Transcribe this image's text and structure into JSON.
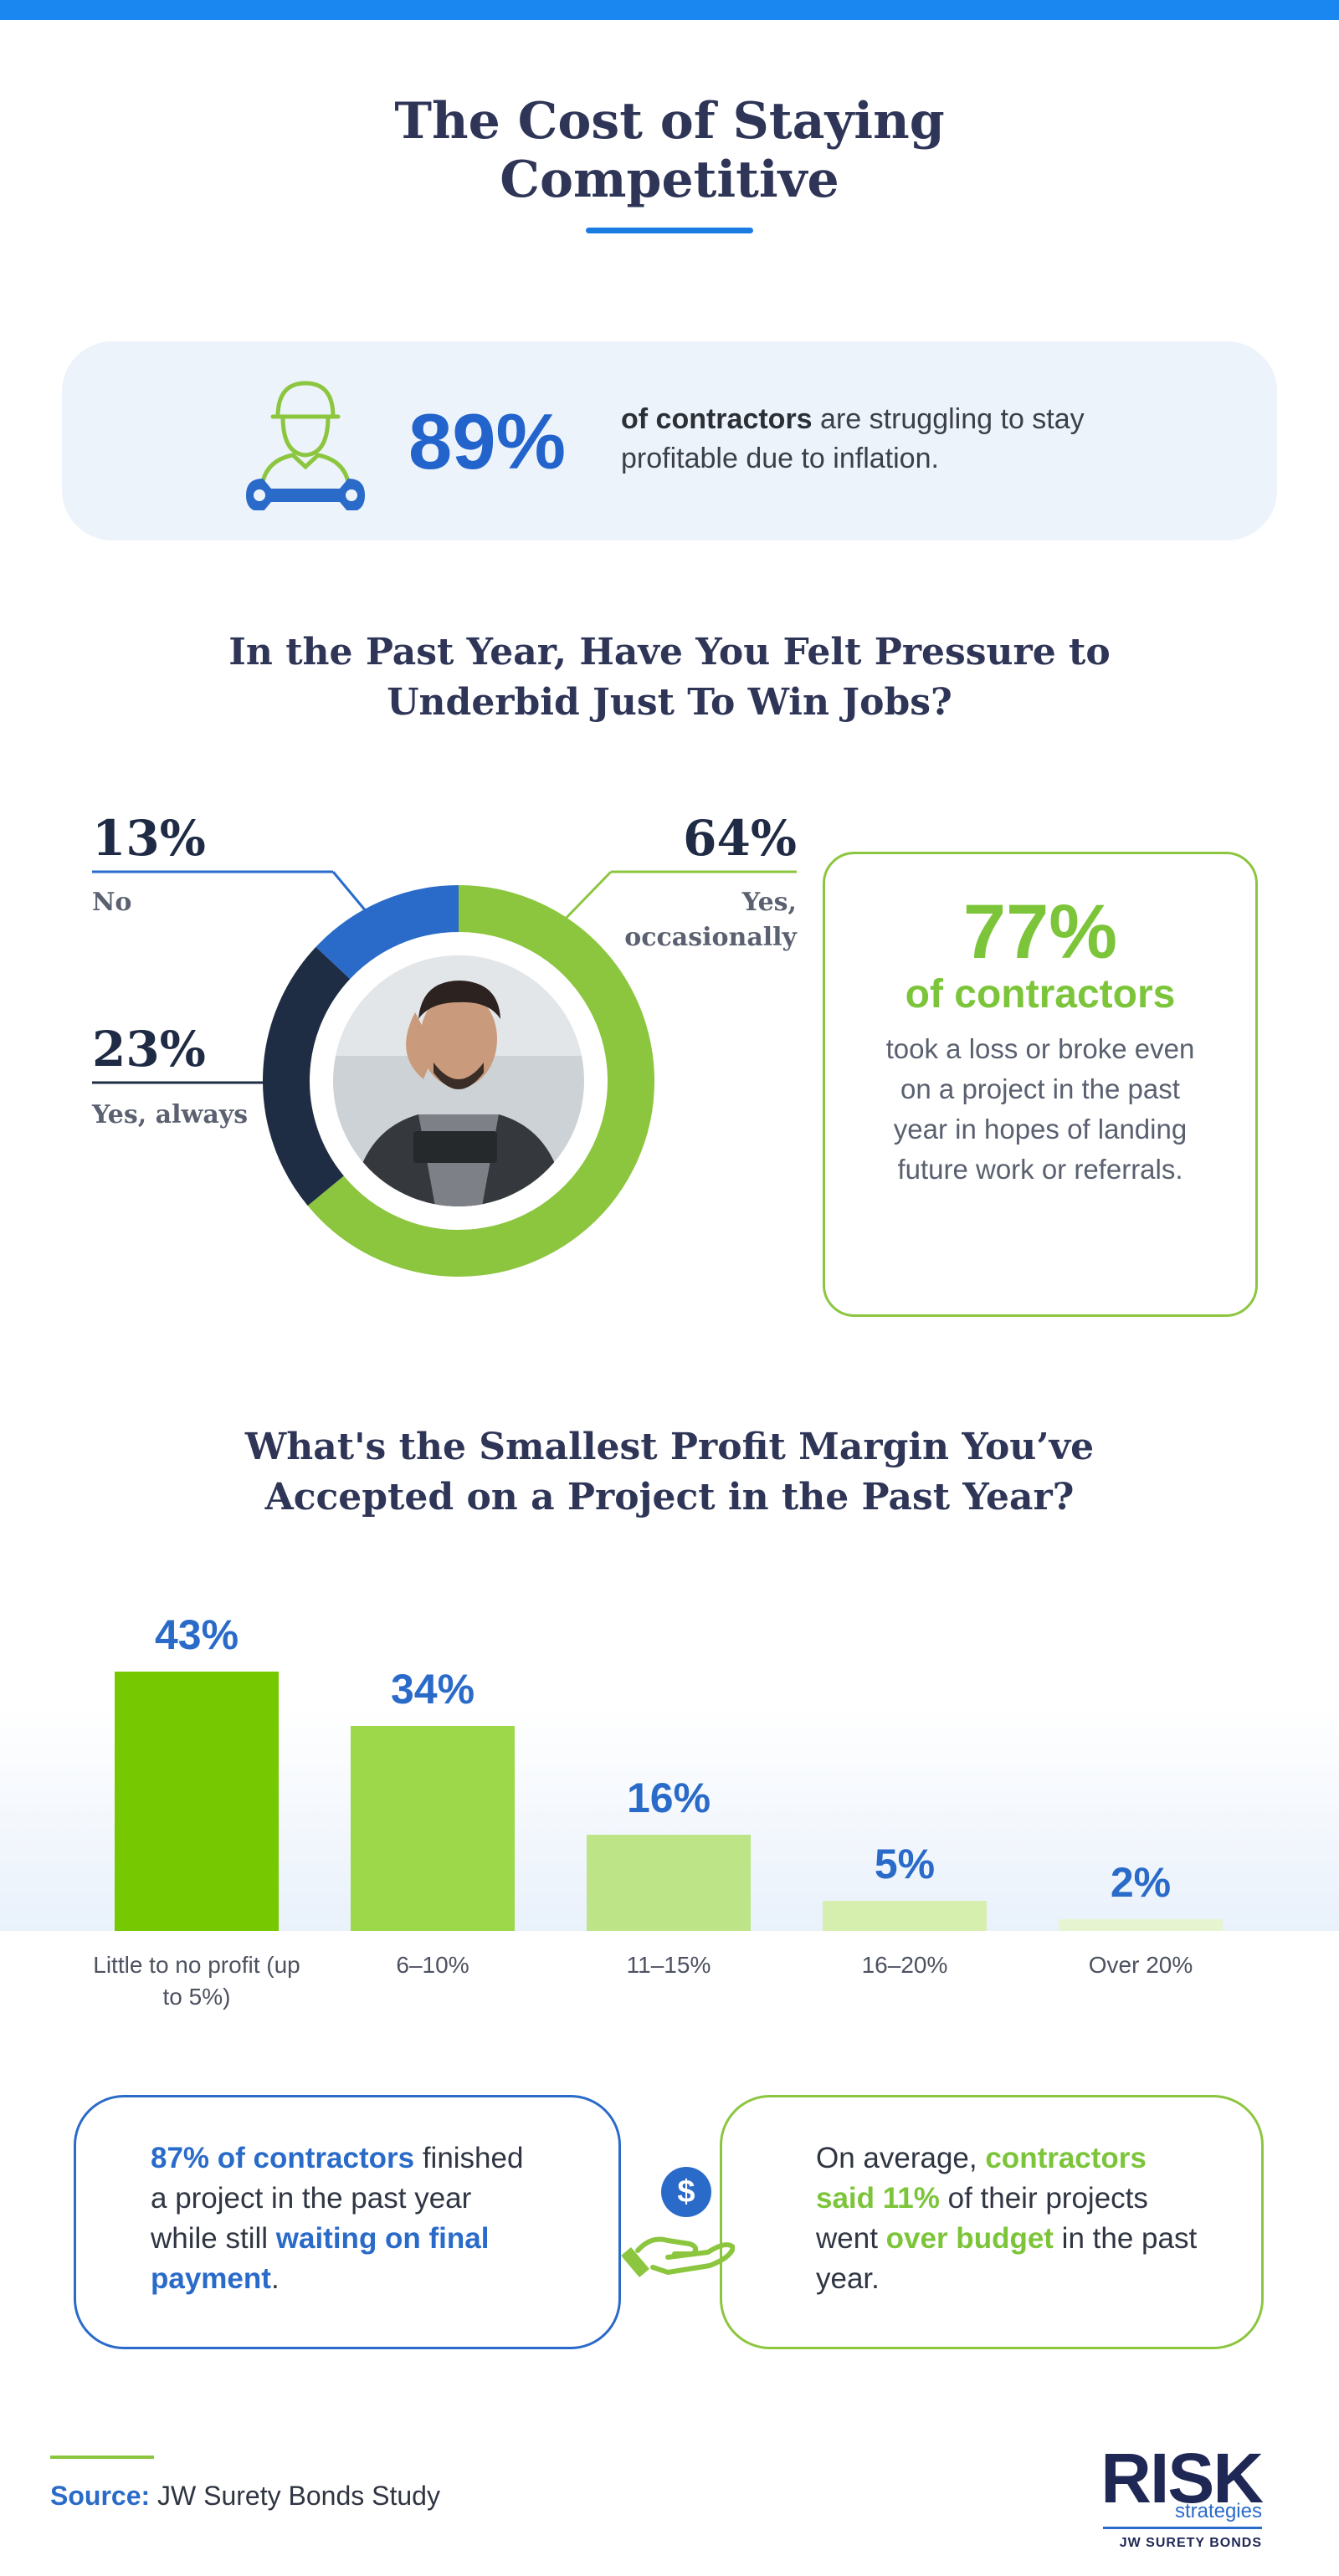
{
  "title": "The Cost of Staying Competitive",
  "colors": {
    "accent_blue": "#2a6bc9",
    "accent_green": "#7cc53a",
    "navy": "#1f2a44",
    "top_bar": "#1a86f0"
  },
  "stat_card": {
    "icon": "contractor-wrench-icon",
    "value": "89%",
    "bold_text": "of contractors",
    "rest_text": " are struggling to stay profitable due to inflation."
  },
  "donut_section": {
    "title": "In the Past Year, Have You Felt Pressure to Underbid Just To Win Jobs?",
    "labels": [
      {
        "pct": "13%",
        "label": "No"
      },
      {
        "pct": "23%",
        "label": "Yes, always"
      },
      {
        "pct": "64%",
        "label": "Yes, occasionally"
      }
    ],
    "info_box": {
      "value": "77%",
      "subtitle": "of contractors",
      "text": "took a loss or broke even on a project in the past year in hopes of landing future work or referrals."
    }
  },
  "bar_section": {
    "title": "What's the Smallest Profit Margin You’ve Accepted on a Project in the Past Year?"
  },
  "chart_data": [
    {
      "type": "pie",
      "title": "In the Past Year, Have You Felt Pressure to Underbid Just To Win Jobs?",
      "categories": [
        "No",
        "Yes, always",
        "Yes, occasionally"
      ],
      "values": [
        13,
        23,
        64
      ],
      "colors": [
        "#2a6bc9",
        "#1f2d44",
        "#8cc63f"
      ],
      "donut": true
    },
    {
      "type": "bar",
      "title": "What's the Smallest Profit Margin You’ve Accepted on a Project in the Past Year?",
      "categories": [
        "Little to no profit (up to 5%)",
        "6–10%",
        "11–15%",
        "16–20%",
        "Over 20%"
      ],
      "values": [
        43,
        34,
        16,
        5,
        2
      ],
      "value_labels": [
        "43%",
        "34%",
        "16%",
        "5%",
        "2%"
      ],
      "colors": [
        "#76c800",
        "#9cd84a",
        "#bde486",
        "#d6efaf",
        "#e6f5cf"
      ],
      "ylim": [
        0,
        43
      ],
      "grid": false
    }
  ],
  "bottom": {
    "left": {
      "highlight": "87% of contractors",
      "middle": " finished a project in the past year while still ",
      "highlight2": "waiting on final payment",
      "end": "."
    },
    "center_icon": "hand-dollar-coin-icon",
    "coin_symbol": "$",
    "right": {
      "start": "On average, ",
      "highlight": "contractors said 11%",
      "middle": " of their projects went ",
      "highlight2": "over budget",
      "end": " in the past year."
    }
  },
  "source": {
    "label": "Source:",
    "text": " JW Surety Bonds Study"
  },
  "logo": {
    "word": "RISK",
    "sub": "strategies",
    "tag": "JW SURETY BONDS"
  }
}
